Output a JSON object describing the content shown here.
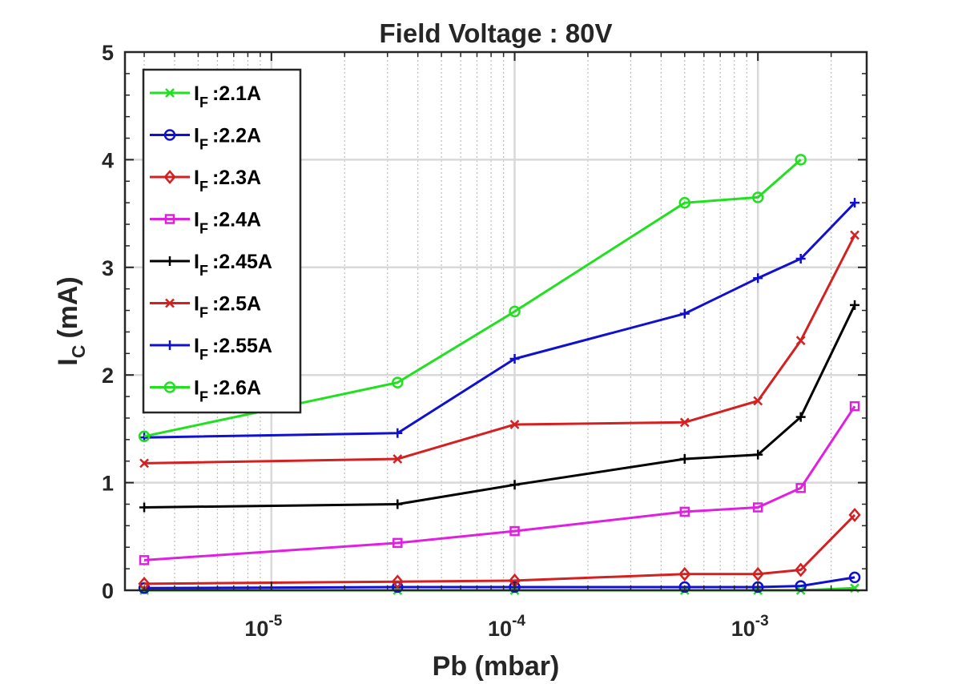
{
  "chart_data": {
    "type": "line",
    "title": "Field Voltage : 80V",
    "xlabel": "Pb (mbar)",
    "ylabel_main": "I",
    "ylabel_sub": "C",
    "ylabel_unit": "(mA)",
    "xscale": "log",
    "xlim": [
      2.5e-06,
      0.0028
    ],
    "ylim": [
      0,
      5
    ],
    "grid": true,
    "legend_position": "top-left",
    "x_ticks": [
      {
        "value": 1e-05,
        "base": "10",
        "exp": "-5"
      },
      {
        "value": 0.0001,
        "base": "10",
        "exp": "-4"
      },
      {
        "value": 0.001,
        "base": "10",
        "exp": "-3"
      }
    ],
    "y_ticks": [
      0,
      1,
      2,
      3,
      4,
      5
    ],
    "x": [
      3e-06,
      3.3e-05,
      0.0001,
      0.0005,
      0.001,
      0.0015,
      0.0025
    ],
    "series": [
      {
        "name": "2.1A",
        "legend_prefix": "I",
        "legend_sub": "F",
        "color": "#20e020",
        "marker": "x",
        "points": [
          [
            3e-06,
            0.0
          ],
          [
            3.3e-05,
            0.0
          ],
          [
            0.0001,
            0.0
          ],
          [
            0.0005,
            0.0
          ],
          [
            0.001,
            0.0
          ],
          [
            0.0015,
            0.0
          ],
          [
            0.0025,
            0.02
          ]
        ]
      },
      {
        "name": "2.2A",
        "legend_prefix": "I",
        "legend_sub": "F",
        "color": "#1010d0",
        "marker": "o",
        "points": [
          [
            3e-06,
            0.02
          ],
          [
            3.3e-05,
            0.03
          ],
          [
            0.0001,
            0.03
          ],
          [
            0.0005,
            0.03
          ],
          [
            0.001,
            0.03
          ],
          [
            0.0015,
            0.04
          ],
          [
            0.0025,
            0.12
          ]
        ]
      },
      {
        "name": "2.3A",
        "legend_prefix": "I",
        "legend_sub": "F",
        "color": "#d42020",
        "marker": "diamond",
        "points": [
          [
            3e-06,
            0.06
          ],
          [
            3.3e-05,
            0.08
          ],
          [
            0.0001,
            0.09
          ],
          [
            0.0005,
            0.15
          ],
          [
            0.001,
            0.15
          ],
          [
            0.0015,
            0.19
          ],
          [
            0.0025,
            0.7
          ]
        ]
      },
      {
        "name": "2.4A",
        "legend_prefix": "I",
        "legend_sub": "F",
        "color": "#e020e0",
        "marker": "square",
        "points": [
          [
            3e-06,
            0.28
          ],
          [
            3.3e-05,
            0.44
          ],
          [
            0.0001,
            0.55
          ],
          [
            0.0005,
            0.73
          ],
          [
            0.001,
            0.77
          ],
          [
            0.0015,
            0.95
          ],
          [
            0.0025,
            1.71
          ]
        ]
      },
      {
        "name": "2.45A",
        "legend_prefix": "I",
        "legend_sub": "F",
        "color": "#000000",
        "marker": "plus",
        "points": [
          [
            3e-06,
            0.77
          ],
          [
            3.3e-05,
            0.8
          ],
          [
            0.0001,
            0.98
          ],
          [
            0.0005,
            1.22
          ],
          [
            0.001,
            1.26
          ],
          [
            0.0015,
            1.61
          ],
          [
            0.0025,
            2.65
          ]
        ]
      },
      {
        "name": "2.5A",
        "legend_prefix": "I",
        "legend_sub": "F",
        "color": "#d42020",
        "marker": "x",
        "points": [
          [
            3e-06,
            1.18
          ],
          [
            3.3e-05,
            1.22
          ],
          [
            0.0001,
            1.54
          ],
          [
            0.0005,
            1.56
          ],
          [
            0.001,
            1.76
          ],
          [
            0.0015,
            2.32
          ],
          [
            0.0025,
            3.3
          ]
        ]
      },
      {
        "name": "2.55A",
        "legend_prefix": "I",
        "legend_sub": "F",
        "color": "#1010d0",
        "marker": "plus",
        "points": [
          [
            3e-06,
            1.42
          ],
          [
            3.3e-05,
            1.46
          ],
          [
            0.0001,
            2.15
          ],
          [
            0.0005,
            2.57
          ],
          [
            0.001,
            2.9
          ],
          [
            0.0015,
            3.08
          ],
          [
            0.0025,
            3.6
          ]
        ]
      },
      {
        "name": "2.6A",
        "legend_prefix": "I",
        "legend_sub": "F",
        "color": "#20e020",
        "marker": "o",
        "points": [
          [
            3e-06,
            1.43
          ],
          [
            3.3e-05,
            1.93
          ],
          [
            0.0001,
            2.59
          ],
          [
            0.0005,
            3.6
          ],
          [
            0.001,
            3.65
          ],
          [
            0.0015,
            4.0
          ]
        ]
      }
    ]
  }
}
